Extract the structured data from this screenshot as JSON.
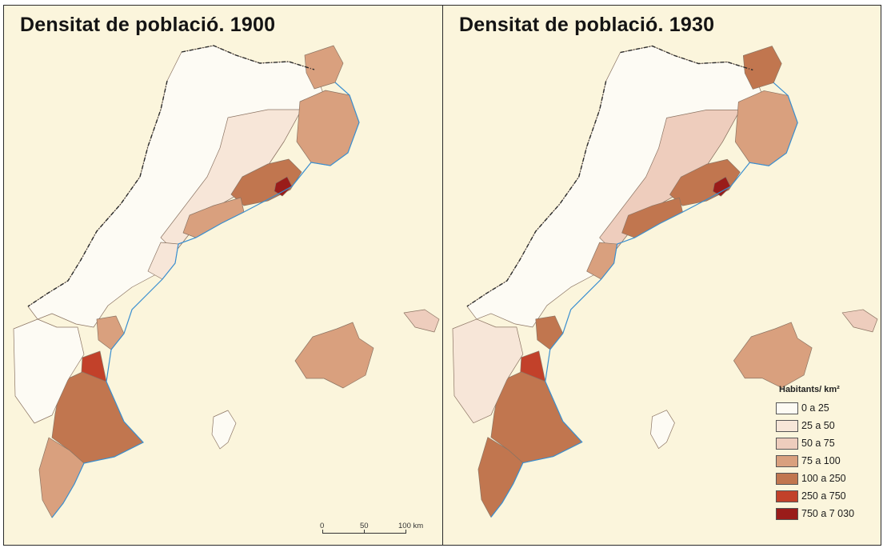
{
  "panels": [
    {
      "title": "Densitat de població. 1900",
      "year": 1900,
      "region_classes": {
        "north_interior": "0 a 25",
        "northeast_cap_creus": "75 a 100",
        "girona_coast": "75 a 100",
        "barcelona_metro": "100 a 250",
        "barcelona_city": "750 a 7 030",
        "tarragona_coast": "75 a 100",
        "central_catalonia": "25 a 50",
        "ebre_delta": "25 a 50",
        "castello_coast": "75 a 100",
        "valencia_city": "250 a 750",
        "valencia_south": "100 a 250",
        "alacant": "75 a 100",
        "interior_south": "0 a 25",
        "mallorca": "75 a 100",
        "menorca": "50 a 75",
        "eivissa": "0 a 25"
      }
    },
    {
      "title": "Densitat de població. 1930",
      "year": 1930,
      "region_classes": {
        "north_interior": "0 a 25",
        "northeast_cap_creus": "100 a 250",
        "girona_coast": "75 a 100",
        "barcelona_metro": "100 a 250",
        "barcelona_city": "750 a 7 030",
        "tarragona_coast": "100 a 250",
        "central_catalonia": "50 a 75",
        "ebre_delta": "75 a 100",
        "castello_coast": "100 a 250",
        "valencia_city": "250 a 750",
        "valencia_south": "100 a 250",
        "alacant": "100 a 250",
        "interior_south": "25 a 50",
        "mallorca": "75 a 100",
        "menorca": "50 a 75",
        "eivissa": "0 a 25"
      }
    }
  ],
  "legend": {
    "title": "Habitants/ km²",
    "classes": [
      {
        "label": "0 a 25",
        "color": "#fdfbf4"
      },
      {
        "label": "25 a 50",
        "color": "#f7e6d8"
      },
      {
        "label": "50 a 75",
        "color": "#eecdbd"
      },
      {
        "label": "75 a 100",
        "color": "#d9a07e"
      },
      {
        "label": "100 a 250",
        "color": "#c1764f"
      },
      {
        "label": "250 a 750",
        "color": "#c2412a"
      },
      {
        "label": "750 a 7 030",
        "color": "#9a1c1a"
      }
    ]
  },
  "scale": {
    "ticks": [
      "0",
      "50",
      "100 km"
    ]
  },
  "colors": {
    "background": "#fbf5dc",
    "coast": "#3a8fd0",
    "border": "#2a2a2a"
  }
}
